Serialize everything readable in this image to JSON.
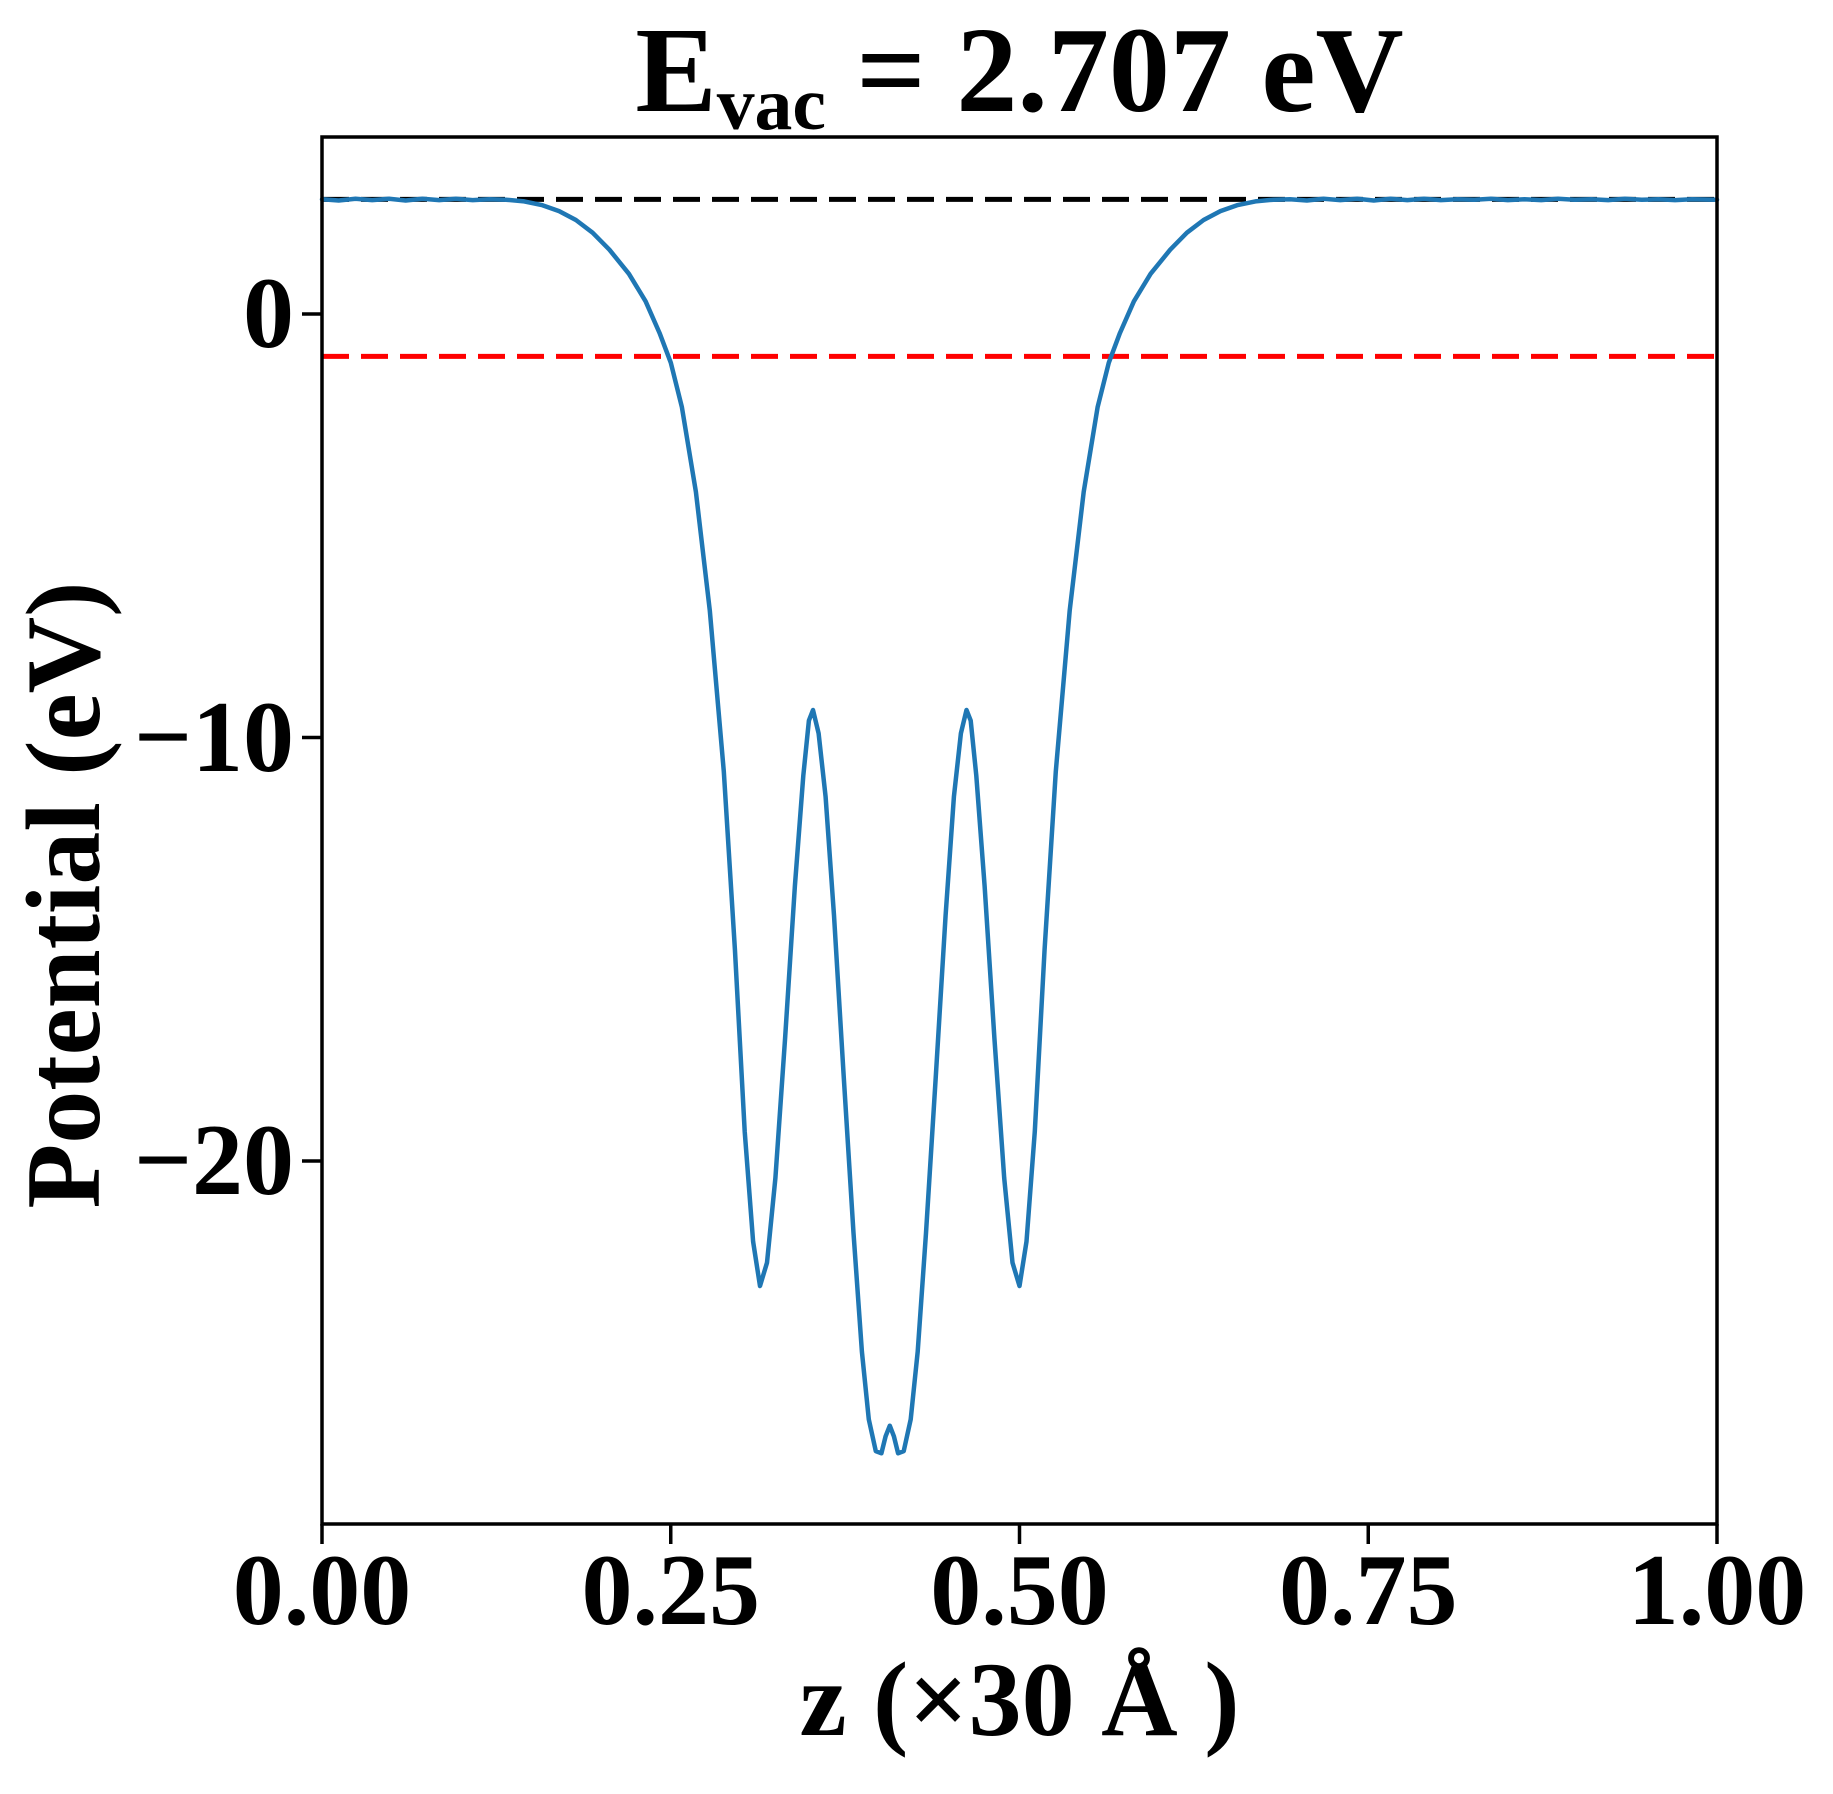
{
  "figure": {
    "background": "#ffffff"
  },
  "title": {
    "prefix": "E",
    "subscript": "vac",
    "rest": " = 2.707 eV"
  },
  "chart_data": {
    "type": "line",
    "title": "E_vac = 2.707 eV",
    "xlabel": "z (×30 Å )",
    "ylabel": "Potential (eV)",
    "xlim": [
      0.0,
      1.0
    ],
    "ylim": [
      -28.57,
      4.18
    ],
    "grid": false,
    "legend": "none",
    "x_ticks": {
      "values": [
        0.0,
        0.25,
        0.5,
        0.75,
        1.0
      ],
      "labels": [
        "0.00",
        "0.25",
        "0.50",
        "0.75",
        "1.00"
      ]
    },
    "y_ticks": {
      "values": [
        0,
        -10,
        -20
      ],
      "labels": [
        "0",
        "−10",
        "−20"
      ]
    },
    "annotations": {
      "E_vac_eV": 2.707
    },
    "series": [
      {
        "name": "planar-averaged-potential",
        "type": "line",
        "color": "#1f77b4",
        "style": "solid",
        "width": 4.5,
        "points": [
          [
            0.0,
            2.71
          ],
          [
            0.012,
            2.68
          ],
          [
            0.024,
            2.72
          ],
          [
            0.036,
            2.69
          ],
          [
            0.048,
            2.72
          ],
          [
            0.06,
            2.68
          ],
          [
            0.072,
            2.72
          ],
          [
            0.084,
            2.69
          ],
          [
            0.096,
            2.72
          ],
          [
            0.108,
            2.69
          ],
          [
            0.12,
            2.71
          ],
          [
            0.132,
            2.7
          ],
          [
            0.145,
            2.66
          ],
          [
            0.158,
            2.57
          ],
          [
            0.17,
            2.43
          ],
          [
            0.182,
            2.22
          ],
          [
            0.194,
            1.92
          ],
          [
            0.206,
            1.52
          ],
          [
            0.22,
            0.95
          ],
          [
            0.232,
            0.3
          ],
          [
            0.242,
            -0.45
          ],
          [
            0.25,
            -1.15
          ],
          [
            0.258,
            -2.2
          ],
          [
            0.268,
            -4.2
          ],
          [
            0.278,
            -7.0
          ],
          [
            0.288,
            -10.8
          ],
          [
            0.296,
            -15.0
          ],
          [
            0.303,
            -19.3
          ],
          [
            0.309,
            -21.9
          ],
          [
            0.314,
            -22.95
          ],
          [
            0.319,
            -22.4
          ],
          [
            0.325,
            -20.4
          ],
          [
            0.332,
            -17.1
          ],
          [
            0.339,
            -13.5
          ],
          [
            0.345,
            -10.9
          ],
          [
            0.349,
            -9.6
          ],
          [
            0.352,
            -9.35
          ],
          [
            0.356,
            -9.9
          ],
          [
            0.361,
            -11.4
          ],
          [
            0.367,
            -14.2
          ],
          [
            0.374,
            -18.0
          ],
          [
            0.381,
            -21.7
          ],
          [
            0.387,
            -24.5
          ],
          [
            0.392,
            -26.1
          ],
          [
            0.397,
            -26.85
          ],
          [
            0.401,
            -26.9
          ],
          [
            0.404,
            -26.5
          ],
          [
            0.407,
            -26.25
          ],
          [
            0.41,
            -26.5
          ],
          [
            0.413,
            -26.9
          ],
          [
            0.417,
            -26.85
          ],
          [
            0.422,
            -26.1
          ],
          [
            0.427,
            -24.5
          ],
          [
            0.433,
            -21.7
          ],
          [
            0.44,
            -18.0
          ],
          [
            0.447,
            -14.2
          ],
          [
            0.453,
            -11.4
          ],
          [
            0.458,
            -9.9
          ],
          [
            0.462,
            -9.35
          ],
          [
            0.465,
            -9.6
          ],
          [
            0.469,
            -10.9
          ],
          [
            0.475,
            -13.5
          ],
          [
            0.482,
            -17.1
          ],
          [
            0.489,
            -20.4
          ],
          [
            0.495,
            -22.4
          ],
          [
            0.5,
            -22.95
          ],
          [
            0.505,
            -21.9
          ],
          [
            0.511,
            -19.3
          ],
          [
            0.518,
            -15.0
          ],
          [
            0.526,
            -10.8
          ],
          [
            0.536,
            -7.0
          ],
          [
            0.546,
            -4.2
          ],
          [
            0.556,
            -2.2
          ],
          [
            0.564,
            -1.15
          ],
          [
            0.572,
            -0.45
          ],
          [
            0.582,
            0.3
          ],
          [
            0.594,
            0.95
          ],
          [
            0.608,
            1.52
          ],
          [
            0.62,
            1.92
          ],
          [
            0.632,
            2.22
          ],
          [
            0.644,
            2.43
          ],
          [
            0.656,
            2.57
          ],
          [
            0.669,
            2.66
          ],
          [
            0.682,
            2.7
          ],
          [
            0.694,
            2.71
          ],
          [
            0.706,
            2.68
          ],
          [
            0.718,
            2.72
          ],
          [
            0.73,
            2.69
          ],
          [
            0.742,
            2.72
          ],
          [
            0.754,
            2.68
          ],
          [
            0.766,
            2.72
          ],
          [
            0.778,
            2.69
          ],
          [
            0.79,
            2.72
          ],
          [
            0.802,
            2.69
          ],
          [
            0.814,
            2.71
          ],
          [
            0.826,
            2.7
          ],
          [
            0.838,
            2.72
          ],
          [
            0.85,
            2.69
          ],
          [
            0.862,
            2.71
          ],
          [
            0.874,
            2.69
          ],
          [
            0.886,
            2.72
          ],
          [
            0.898,
            2.7
          ],
          [
            0.91,
            2.71
          ],
          [
            0.922,
            2.69
          ],
          [
            0.934,
            2.72
          ],
          [
            0.946,
            2.7
          ],
          [
            0.958,
            2.71
          ],
          [
            0.97,
            2.69
          ],
          [
            0.982,
            2.71
          ],
          [
            1.0,
            2.7
          ]
        ]
      },
      {
        "name": "vacuum-level",
        "type": "hline",
        "color": "#000000",
        "style": "dashed",
        "width": 5,
        "y": 2.707
      },
      {
        "name": "fermi-level",
        "type": "hline",
        "color": "#ff0000",
        "style": "dashed",
        "width": 5,
        "y": -1.0
      }
    ]
  },
  "colors": {
    "curve": "#1f77b4",
    "vacuum_line": "#000000",
    "fermi_line": "#ff0000",
    "frame": "#000000",
    "background": "#ffffff"
  }
}
